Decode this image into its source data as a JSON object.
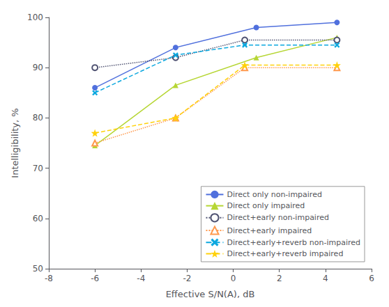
{
  "chart_data": {
    "type": "line",
    "title": "",
    "xlabel": "Effective S/N(A), dB",
    "ylabel": "Intelligibility, %",
    "xlim": [
      -8,
      6
    ],
    "ylim": [
      50,
      100
    ],
    "xticks": [
      -8,
      -6,
      -4,
      -2,
      0,
      2,
      4,
      6
    ],
    "yticks": [
      50,
      60,
      70,
      80,
      90,
      100
    ],
    "grid": false,
    "legend": "lower right",
    "series": [
      {
        "name": "Direct only non-impaired",
        "x": [
          -6,
          -2.5,
          1.0,
          4.5
        ],
        "values": [
          86.0,
          94.0,
          98.0,
          99.0
        ],
        "marker": "circle",
        "line_style": "solid"
      },
      {
        "name": "Direct only impaired",
        "x": [
          -6,
          -2.5,
          1.0,
          4.5
        ],
        "values": [
          74.5,
          86.5,
          92.0,
          96.0
        ],
        "marker": "triangle",
        "line_style": "solid"
      },
      {
        "name": "Direct+early non-impaired",
        "x": [
          -6,
          -2.5,
          0.5,
          4.5
        ],
        "values": [
          90.0,
          92.0,
          95.5,
          95.5
        ],
        "marker": "circle_open",
        "line_style": "dotted"
      },
      {
        "name": "Direct+early impaired",
        "x": [
          -6,
          -2.5,
          0.5,
          4.5
        ],
        "values": [
          75.0,
          80.0,
          90.0,
          90.0
        ],
        "marker": "triangle_open",
        "line_style": "dotted"
      },
      {
        "name": "Direct+early+reverb non-impaired",
        "x": [
          -6,
          -2.5,
          0.5,
          4.5
        ],
        "values": [
          85.0,
          92.5,
          94.5,
          94.5
        ],
        "marker": "x",
        "line_style": "dashed"
      },
      {
        "name": "Direct+early+reverb impaired",
        "x": [
          -6,
          -2.5,
          0.5,
          4.5
        ],
        "values": [
          77.0,
          80.0,
          90.5,
          90.5
        ],
        "marker": "star",
        "line_style": "dashed"
      }
    ]
  }
}
